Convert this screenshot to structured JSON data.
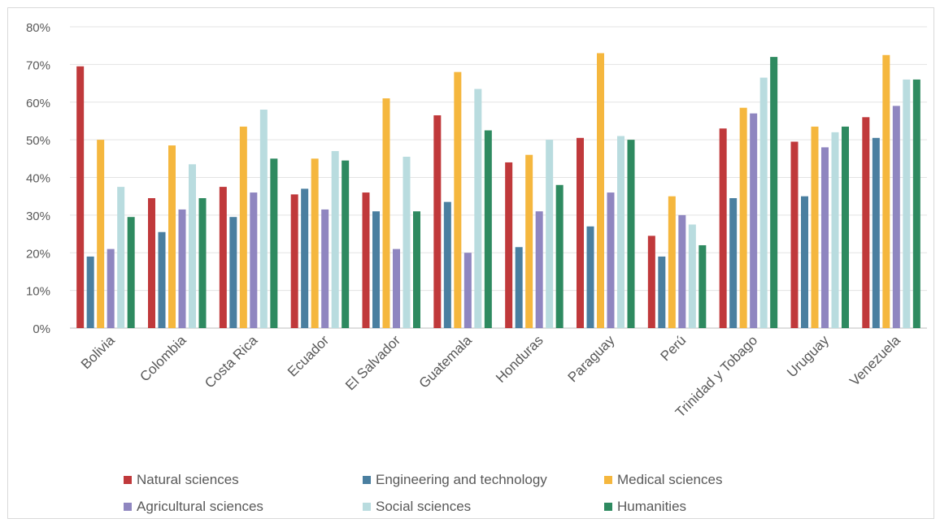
{
  "chart_data": {
    "type": "bar",
    "categories": [
      "Bolivia",
      "Colombia",
      "Costa Rica",
      "Ecuador",
      "El Salvador",
      "Guatemala",
      "Honduras",
      "Paraguay",
      "Perú",
      "Trinidad y Tobago",
      "Uruguay",
      "Venezuela"
    ],
    "ylim": [
      0,
      80
    ],
    "yticks": [
      "0%",
      "10%",
      "20%",
      "30%",
      "40%",
      "50%",
      "60%",
      "70%",
      "80%"
    ],
    "grid": true,
    "legend_position": "bottom",
    "series": [
      {
        "name": "Natural sciences",
        "color": "#c0393b",
        "values": [
          69.5,
          34.5,
          37.5,
          35.5,
          36,
          56.5,
          44,
          50.5,
          24.5,
          53,
          49.5,
          56
        ]
      },
      {
        "name": "Engineering and technology",
        "color": "#4a7fa0",
        "values": [
          19,
          25.5,
          29.5,
          37,
          31,
          33.5,
          21.5,
          27,
          19,
          34.5,
          35,
          50.5
        ]
      },
      {
        "name": "Medical sciences",
        "color": "#f5b73e",
        "values": [
          50,
          48.5,
          53.5,
          45,
          61,
          68,
          46,
          73,
          35,
          58.5,
          53.5,
          72.5
        ]
      },
      {
        "name": "Agricultural sciences",
        "color": "#8f86c0",
        "values": [
          21,
          31.5,
          36,
          31.5,
          21,
          20,
          31,
          36,
          30,
          57,
          48,
          59
        ]
      },
      {
        "name": "Social sciences",
        "color": "#b9dcdf",
        "values": [
          37.5,
          43.5,
          58,
          47,
          45.5,
          63.5,
          50,
          51,
          27.5,
          66.5,
          52,
          66
        ]
      },
      {
        "name": "Humanities",
        "color": "#2e8a60",
        "values": [
          29.5,
          34.5,
          45,
          44.5,
          31,
          52.5,
          38,
          50,
          22,
          72,
          53.5,
          66
        ]
      }
    ]
  }
}
